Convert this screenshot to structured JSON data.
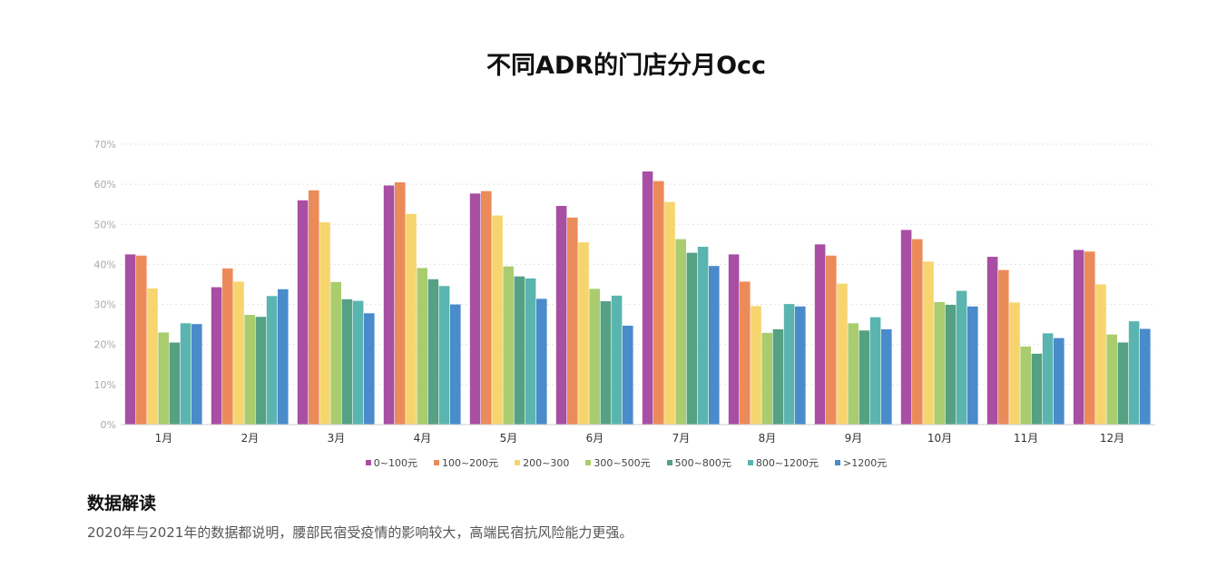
{
  "chart_data": {
    "type": "bar",
    "title": "不同ADR的门店分月Occ",
    "xlabel": "",
    "ylabel": "",
    "ylim": [
      0,
      70
    ],
    "yticks": [
      "0%",
      "10%",
      "20%",
      "30%",
      "40%",
      "50%",
      "60%",
      "70%"
    ],
    "grid": true,
    "legend_position": "bottom",
    "categories": [
      "1月",
      "2月",
      "3月",
      "4月",
      "5月",
      "6月",
      "7月",
      "8月",
      "9月",
      "10月",
      "11月",
      "12月"
    ],
    "series": [
      {
        "name": "0~100元",
        "color": "#a84ea3",
        "values": [
          42.5,
          34.3,
          56.0,
          59.7,
          57.7,
          54.6,
          63.2,
          42.5,
          45.0,
          48.6,
          41.9,
          43.6
        ]
      },
      {
        "name": "100~200元",
        "color": "#ec8b5a",
        "values": [
          42.2,
          39.0,
          58.5,
          60.5,
          58.3,
          51.7,
          60.8,
          35.7,
          42.2,
          46.3,
          38.6,
          43.2
        ]
      },
      {
        "name": "200~300",
        "color": "#f7d56e",
        "values": [
          34.0,
          35.7,
          50.5,
          52.6,
          52.2,
          45.5,
          55.6,
          29.6,
          35.2,
          40.7,
          30.5,
          35.0
        ]
      },
      {
        "name": "300~500元",
        "color": "#a9cd6e",
        "values": [
          23.0,
          27.4,
          35.6,
          39.1,
          39.5,
          33.9,
          46.3,
          22.9,
          25.3,
          30.6,
          19.5,
          22.5
        ]
      },
      {
        "name": "500~800元",
        "color": "#55a183",
        "values": [
          20.5,
          26.9,
          31.3,
          36.3,
          37.0,
          30.8,
          42.9,
          23.8,
          23.5,
          29.9,
          17.7,
          20.5
        ]
      },
      {
        "name": "800~1200元",
        "color": "#5ab5b0",
        "values": [
          25.3,
          32.1,
          30.9,
          34.6,
          36.5,
          32.2,
          44.4,
          30.1,
          26.8,
          33.4,
          22.8,
          25.8
        ]
      },
      {
        "name": ">1200元",
        "color": "#4a8bcb",
        "values": [
          25.1,
          33.8,
          27.8,
          30.0,
          31.4,
          24.7,
          39.6,
          29.5,
          23.8,
          29.5,
          21.6,
          23.9
        ]
      }
    ]
  },
  "section": {
    "heading": "数据解读",
    "text": "2020年与2021年的数据都说明，腰部民宿受疫情的影响较大，高端民宿抗风险能力更强。"
  }
}
